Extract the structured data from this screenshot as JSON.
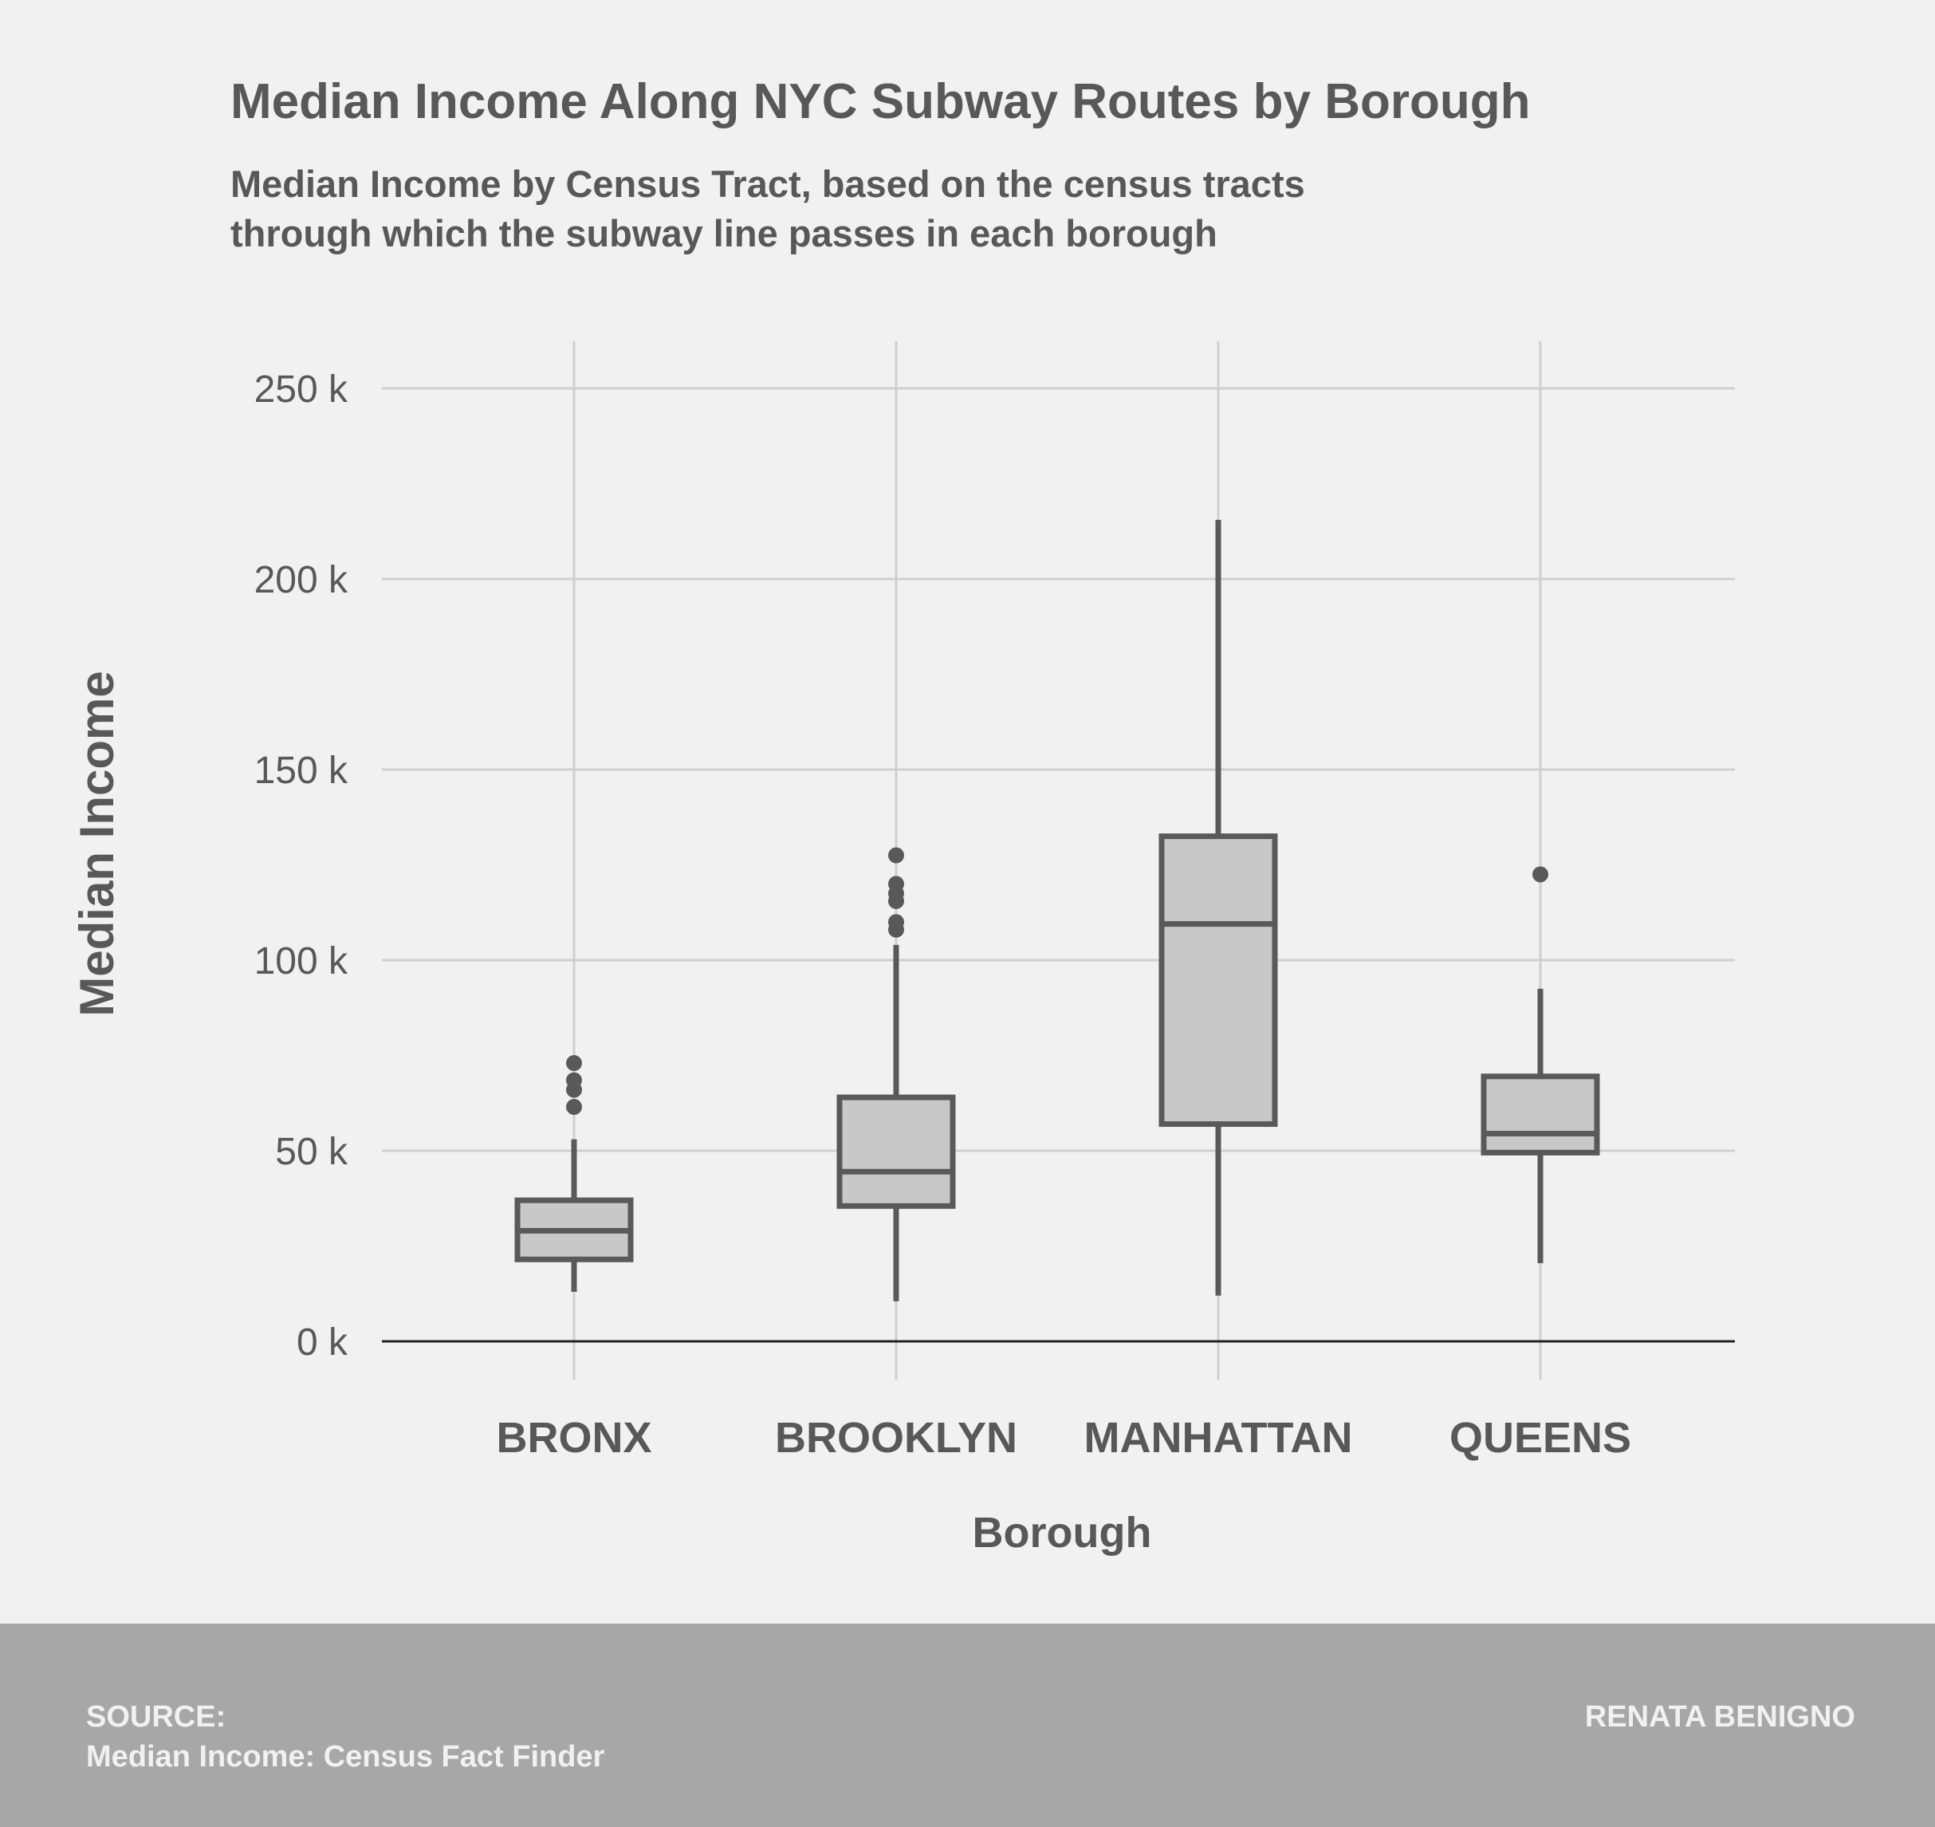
{
  "chart_data": {
    "type": "boxplot",
    "title": "Median Income Along NYC Subway Routes by Borough",
    "subtitle_lines": [
      "Median Income by Census Tract, based on the census tracts",
      "through which the subway line passes in each borough"
    ],
    "xlabel": "Borough",
    "ylabel": "Median Income",
    "ylim": [
      0,
      250000
    ],
    "yticks": [
      0,
      50000,
      100000,
      150000,
      200000,
      250000
    ],
    "ytick_labels": [
      "0 k",
      "50 k",
      "100 k",
      "150 k",
      "200 k",
      "250 k"
    ],
    "grid": true,
    "categories": [
      "BRONX",
      "BROOKLYN",
      "MANHATTAN",
      "QUEENS"
    ],
    "boxes": [
      {
        "category": "BRONX",
        "whisker_low": 13000,
        "q1": 21500,
        "median": 29000,
        "q3": 37000,
        "whisker_high": 53000,
        "outliers": [
          61500,
          66000,
          68500,
          73000
        ]
      },
      {
        "category": "BROOKLYN",
        "whisker_low": 10500,
        "q1": 35500,
        "median": 44500,
        "q3": 64000,
        "whisker_high": 104000,
        "outliers": [
          108000,
          110000,
          115500,
          117500,
          120000,
          127500
        ]
      },
      {
        "category": "MANHATTAN",
        "whisker_low": 12000,
        "q1": 57000,
        "median": 109500,
        "q3": 132500,
        "whisker_high": 215500,
        "outliers": []
      },
      {
        "category": "QUEENS",
        "whisker_low": 20500,
        "q1": 49500,
        "median": 54500,
        "q3": 69500,
        "whisker_high": 92500,
        "outliers": [
          122500
        ]
      }
    ]
  },
  "footer": {
    "source_label": "SOURCE:",
    "source_text": "Median Income: Census Fact Finder",
    "author": "RENATA BENIGNO"
  },
  "colors": {
    "background": "#f1f1f1",
    "box_fill": "#c8c8c8",
    "box_stroke": "#595959",
    "grid": "#cfcfcf",
    "text": "#585858",
    "footer_bg": "#a7a7a7",
    "footer_text": "#f1f1f1"
  }
}
